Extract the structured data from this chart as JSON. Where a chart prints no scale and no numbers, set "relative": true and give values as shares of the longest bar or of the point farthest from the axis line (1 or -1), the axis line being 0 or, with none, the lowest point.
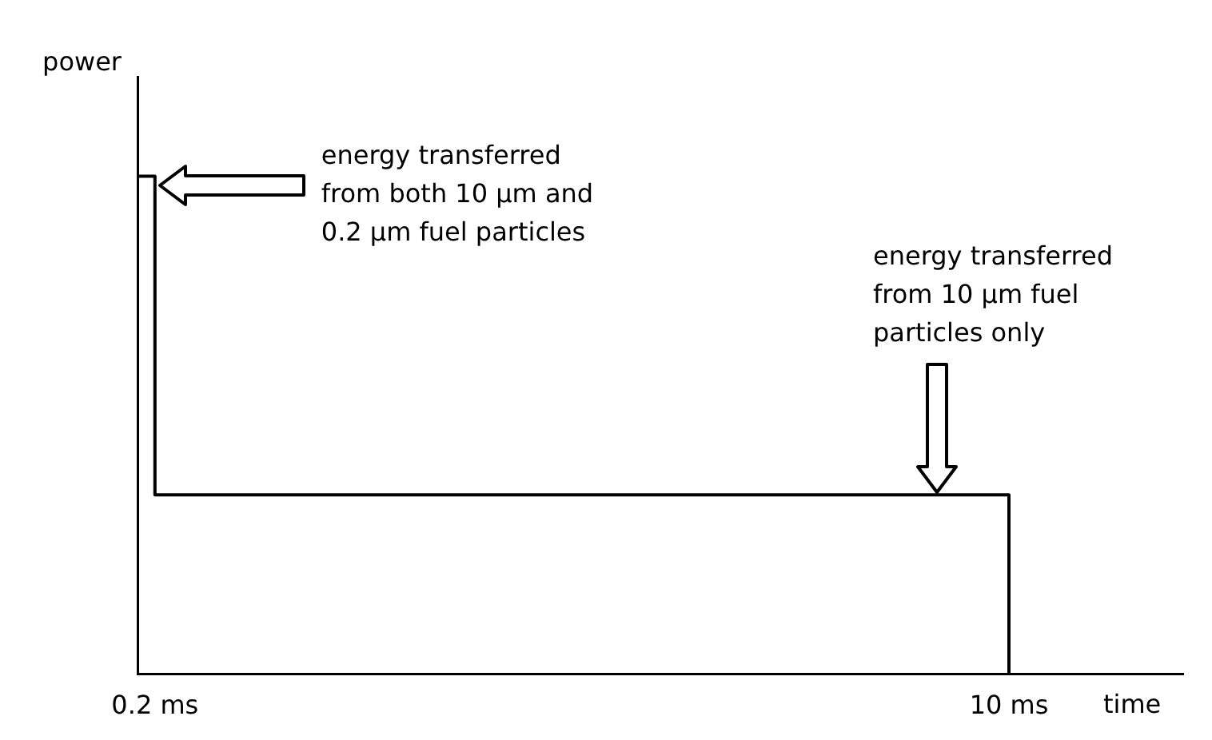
{
  "chart_data": {
    "type": "step",
    "xlabel": "time",
    "ylabel": "power",
    "relative": true,
    "color": "#000000",
    "x": [
      0,
      0.2,
      10
    ],
    "values": [
      1,
      0.36,
      0
    ],
    "xlim": [
      0,
      12
    ],
    "xticks": [
      {
        "value": 0.2,
        "label": "0.2 ms"
      },
      {
        "value": 10,
        "label": "10 ms"
      }
    ],
    "annotations": [
      "energy transferred from both 10 μm and 0.2 μm fuel particles",
      "energy transferred from 10 μm fuel particles only"
    ]
  }
}
